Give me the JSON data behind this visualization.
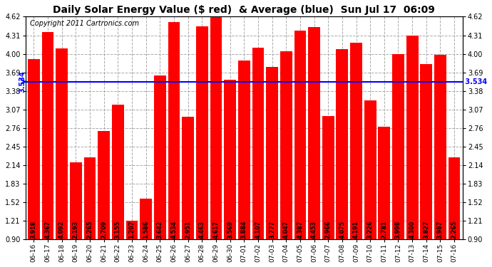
{
  "title": "Daily Solar Energy Value ($ red)  & Average (blue)  Sun Jul 17  06:09",
  "copyright": "Copyright 2011 Cartronics.com",
  "average": 3.534,
  "bar_color": "#ff0000",
  "average_color": "#0000ff",
  "background_color": "#ffffff",
  "plot_bg_color": "#ffffff",
  "grid_color": "#aaaaaa",
  "categories": [
    "06-16",
    "06-17",
    "06-18",
    "06-19",
    "06-20",
    "06-21",
    "06-22",
    "06-23",
    "06-24",
    "06-25",
    "06-26",
    "06-27",
    "06-28",
    "06-29",
    "06-30",
    "07-01",
    "07-02",
    "07-03",
    "07-04",
    "07-05",
    "07-06",
    "07-07",
    "07-08",
    "07-09",
    "07-10",
    "07-11",
    "07-12",
    "07-13",
    "07-14",
    "07-15",
    "07-16"
  ],
  "values": [
    3.918,
    4.367,
    4.092,
    2.193,
    2.265,
    2.709,
    3.155,
    1.207,
    1.586,
    3.642,
    4.534,
    2.951,
    4.463,
    4.617,
    3.569,
    3.884,
    4.107,
    3.777,
    4.047,
    4.387,
    4.453,
    2.966,
    4.075,
    4.191,
    3.226,
    2.781,
    3.998,
    4.3,
    3.827,
    3.987,
    2.265
  ],
  "ylim_min": 0.9,
  "ylim_max": 4.62,
  "yticks": [
    0.9,
    1.21,
    1.52,
    1.83,
    2.14,
    2.45,
    2.76,
    3.07,
    3.38,
    3.69,
    4.0,
    4.31,
    4.62
  ],
  "title_fontsize": 10,
  "label_fontsize": 6,
  "tick_fontsize": 7,
  "copyright_fontsize": 7,
  "value_label_fontsize": 5.8
}
